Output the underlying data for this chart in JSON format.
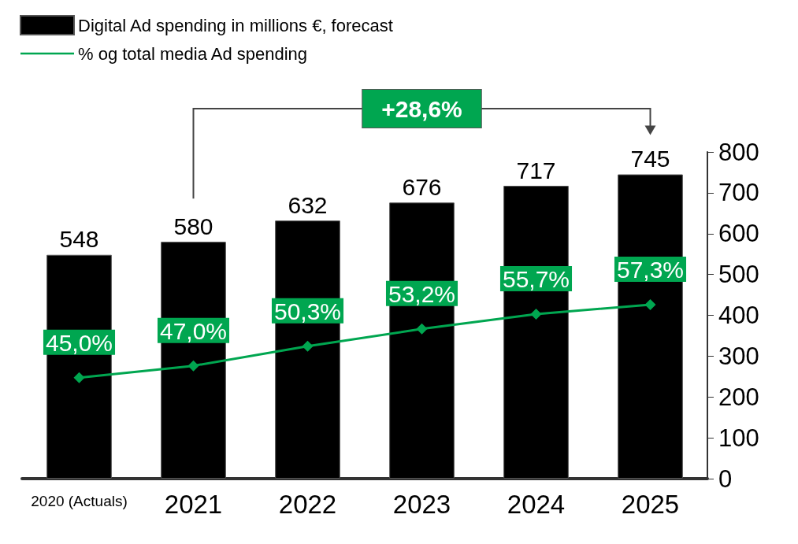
{
  "chart_data": {
    "type": "bar",
    "categories": [
      "2020 (Actuals)",
      "2021",
      "2022",
      "2023",
      "2024",
      "2025"
    ],
    "series": [
      {
        "name": "Digital Ad spending in millions €, forecast",
        "color": "#000000",
        "values": [
          548,
          580,
          632,
          676,
          717,
          745
        ],
        "value_labels": [
          "548",
          "580",
          "632",
          "676",
          "717",
          "745"
        ]
      },
      {
        "name": "% og total media Ad spending",
        "type": "line",
        "axis": "y2",
        "color": "#00a650",
        "marker": "diamond",
        "values": [
          45.0,
          47.0,
          50.3,
          53.2,
          55.7,
          57.3
        ],
        "value_labels": [
          "45,0%",
          "47,0%",
          "50,3%",
          "53,2%",
          "55,7%",
          "57,3%"
        ]
      }
    ],
    "ylim": [
      0,
      800
    ],
    "yticks": [
      0,
      100,
      200,
      300,
      400,
      500,
      600,
      700,
      800
    ],
    "y2lim": [
      28,
      83
    ],
    "annotations": [
      "+28,6%"
    ],
    "legend": "top left",
    "grid": false
  }
}
